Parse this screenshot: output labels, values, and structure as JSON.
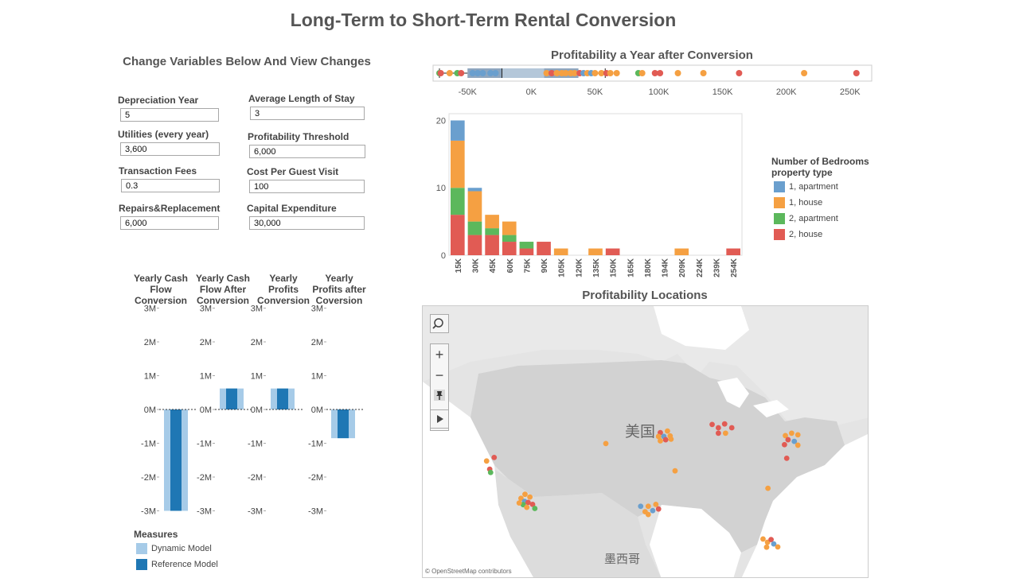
{
  "title": "Long-Term to Short-Term Rental Conversion",
  "controls": {
    "title": "Change Variables Below And View Changes",
    "params": [
      {
        "label": "Depreciation Year",
        "value": "5"
      },
      {
        "label": "Average Length of Stay",
        "value": "3"
      },
      {
        "label": "Utilities (every year)",
        "value": "3,600"
      },
      {
        "label": "Profitability Threshold",
        "value": "6,000"
      },
      {
        "label": "Transaction Fees",
        "value": "0.3"
      },
      {
        "label": "Cost Per Guest Visit",
        "value": "100"
      },
      {
        "label": "Repairs&Replacement",
        "value": "6,000"
      },
      {
        "label": "Capital Expenditure",
        "value": "30,000"
      }
    ]
  },
  "colors": {
    "apartment1": "#6a9fce",
    "house1": "#f5a042",
    "apartment2": "#5cb85c",
    "house2": "#e15b54",
    "dynamic": "#a6cbe8",
    "reference": "#1f77b4",
    "box": "#8ea6bf",
    "box_light": "#b4c7d9"
  },
  "measures_legend": {
    "title": "Measures",
    "items": [
      {
        "label": "Dynamic Model",
        "color": "#a6cbe8"
      },
      {
        "label": "Reference Model",
        "color": "#1f77b4"
      }
    ]
  },
  "bedrooms_legend": {
    "title_line1": "Number of Bedrooms",
    "title_line2": "property type",
    "items": [
      {
        "label": "1, apartment",
        "color": "#6a9fce"
      },
      {
        "label": "1, house",
        "color": "#f5a042"
      },
      {
        "label": "2, apartment",
        "color": "#5cb85c"
      },
      {
        "label": "2, house",
        "color": "#e15b54"
      }
    ]
  },
  "profitability_strip": {
    "title": "Profitability a Year after Conversion",
    "tick_labels": [
      "-50K",
      "0K",
      "50K",
      "100K",
      "150K",
      "200K",
      "250K"
    ],
    "tick_values": [
      -50000,
      0,
      50000,
      100000,
      150000,
      200000,
      250000
    ],
    "xlim": [
      -77000,
      267000
    ],
    "box": {
      "q1": -50000,
      "median": -23000,
      "q3": 10000,
      "upper_q": 37000,
      "whisker_low": -72000,
      "whisker_high": 58000
    },
    "points": [
      {
        "x": -72000,
        "g": "apartment2"
      },
      {
        "x": -71000,
        "g": "house2"
      },
      {
        "x": -64000,
        "g": "house1"
      },
      {
        "x": -58000,
        "g": "apartment2"
      },
      {
        "x": -55000,
        "g": "house2"
      },
      {
        "x": -46000,
        "g": "apartment1"
      },
      {
        "x": -42000,
        "g": "apartment1"
      },
      {
        "x": -38000,
        "g": "apartment1"
      },
      {
        "x": -32000,
        "g": "apartment1"
      },
      {
        "x": -28000,
        "g": "apartment1"
      },
      {
        "x": 12000,
        "g": "house1"
      },
      {
        "x": 16000,
        "g": "house2"
      },
      {
        "x": 20000,
        "g": "house1"
      },
      {
        "x": 24000,
        "g": "house1"
      },
      {
        "x": 27000,
        "g": "house1"
      },
      {
        "x": 31000,
        "g": "house1"
      },
      {
        "x": 34000,
        "g": "house1"
      },
      {
        "x": 38000,
        "g": "house2"
      },
      {
        "x": 41000,
        "g": "apartment1"
      },
      {
        "x": 44000,
        "g": "house1"
      },
      {
        "x": 47000,
        "g": "apartment1"
      },
      {
        "x": 50000,
        "g": "house1"
      },
      {
        "x": 55000,
        "g": "house1"
      },
      {
        "x": 59000,
        "g": "house2"
      },
      {
        "x": 62000,
        "g": "house1"
      },
      {
        "x": 67000,
        "g": "house1"
      },
      {
        "x": 84000,
        "g": "apartment2"
      },
      {
        "x": 87000,
        "g": "house1"
      },
      {
        "x": 97000,
        "g": "house2"
      },
      {
        "x": 101000,
        "g": "house2"
      },
      {
        "x": 115000,
        "g": "house1"
      },
      {
        "x": 135000,
        "g": "house1"
      },
      {
        "x": 163000,
        "g": "house2"
      },
      {
        "x": 214000,
        "g": "house1"
      },
      {
        "x": 255000,
        "g": "house2"
      }
    ]
  },
  "histogram": {
    "categories": [
      "15K",
      "30K",
      "45K",
      "60K",
      "75K",
      "90K",
      "105K",
      "120K",
      "135K",
      "150K",
      "165K",
      "180K",
      "194K",
      "209K",
      "224K",
      "239K",
      "254K"
    ],
    "y_ticks": [
      0,
      10,
      20
    ],
    "ylim": [
      0,
      21
    ],
    "stacks": [
      {
        "house2": 6,
        "apartment2": 4,
        "house1": 7,
        "apartment1": 3
      },
      {
        "house2": 3,
        "apartment2": 2,
        "house1": 4.5,
        "apartment1": 0.5
      },
      {
        "house2": 3,
        "apartment2": 1,
        "house1": 2
      },
      {
        "house2": 2,
        "apartment2": 1,
        "house1": 2
      },
      {
        "house2": 1,
        "apartment2": 1
      },
      {
        "house2": 2
      },
      {
        "house1": 1
      },
      {},
      {
        "house1": 1
      },
      {
        "house2": 1
      },
      {},
      {},
      {},
      {
        "house1": 1
      },
      {},
      {},
      {
        "house2": 1
      }
    ]
  },
  "cashflow": {
    "tick_labels": [
      "3M",
      "2M",
      "1M",
      "0M",
      "-1M",
      "-2M",
      "-3M"
    ],
    "tick_values": [
      3000000,
      2000000,
      1000000,
      0,
      -1000000,
      -2000000,
      -3000000
    ],
    "columns": [
      {
        "title_lines": [
          "Yearly Cash",
          "Flow",
          "Conversion"
        ],
        "dynamic": -3000000,
        "reference": -3000000
      },
      {
        "title_lines": [
          "Yearly Cash",
          "Flow After",
          "Conversion"
        ],
        "dynamic": 620000,
        "reference": 620000
      },
      {
        "title_lines": [
          "Yearly",
          "Profits",
          "Conversion"
        ],
        "dynamic": 620000,
        "reference": 620000
      },
      {
        "title_lines": [
          "Yearly",
          "Profits after",
          "Coversion"
        ],
        "dynamic": -850000,
        "reference": -850000
      }
    ]
  },
  "map": {
    "title": "Profitability Locations",
    "country_label": "美国",
    "mexico_label": "墨西哥",
    "attribution": "© OpenStreetMap contributors",
    "controls": [
      {
        "name": "map-search-button",
        "icon": "search-icon"
      },
      {
        "name": "map-zoom-in-button",
        "label": "+",
        "icon": "plus-icon"
      },
      {
        "name": "map-zoom-out-button",
        "label": "−",
        "icon": "minus-icon"
      },
      {
        "name": "map-pin-button",
        "icon": "pin-icon"
      },
      {
        "name": "map-play-button",
        "icon": "play-icon"
      }
    ],
    "points": [
      {
        "x": 0.16,
        "y": 0.555,
        "g": "house2"
      },
      {
        "x": 0.143,
        "y": 0.568,
        "g": "house1"
      },
      {
        "x": 0.15,
        "y": 0.598,
        "g": "house2"
      },
      {
        "x": 0.152,
        "y": 0.61,
        "g": "apartment2"
      },
      {
        "x": 0.22,
        "y": 0.705,
        "g": "house1"
      },
      {
        "x": 0.228,
        "y": 0.716,
        "g": "apartment1"
      },
      {
        "x": 0.24,
        "y": 0.7,
        "g": "house1"
      },
      {
        "x": 0.225,
        "y": 0.728,
        "g": "apartment2"
      },
      {
        "x": 0.236,
        "y": 0.72,
        "g": "house2"
      },
      {
        "x": 0.233,
        "y": 0.738,
        "g": "house1"
      },
      {
        "x": 0.246,
        "y": 0.727,
        "g": "house2"
      },
      {
        "x": 0.251,
        "y": 0.742,
        "g": "apartment2"
      },
      {
        "x": 0.216,
        "y": 0.722,
        "g": "house1"
      },
      {
        "x": 0.229,
        "y": 0.69,
        "g": "house1"
      },
      {
        "x": 0.41,
        "y": 0.504,
        "g": "house1"
      },
      {
        "x": 0.532,
        "y": 0.464,
        "g": "house2"
      },
      {
        "x": 0.548,
        "y": 0.458,
        "g": "house1"
      },
      {
        "x": 0.528,
        "y": 0.478,
        "g": "house1"
      },
      {
        "x": 0.54,
        "y": 0.478,
        "g": "apartment1"
      },
      {
        "x": 0.554,
        "y": 0.476,
        "g": "house1"
      },
      {
        "x": 0.544,
        "y": 0.49,
        "g": "house2"
      },
      {
        "x": 0.532,
        "y": 0.494,
        "g": "house1"
      },
      {
        "x": 0.556,
        "y": 0.488,
        "g": "house1"
      },
      {
        "x": 0.565,
        "y": 0.604,
        "g": "house1"
      },
      {
        "x": 0.488,
        "y": 0.734,
        "g": "apartment1"
      },
      {
        "x": 0.505,
        "y": 0.734,
        "g": "house1"
      },
      {
        "x": 0.522,
        "y": 0.727,
        "g": "house1"
      },
      {
        "x": 0.498,
        "y": 0.754,
        "g": "house1"
      },
      {
        "x": 0.515,
        "y": 0.75,
        "g": "apartment1"
      },
      {
        "x": 0.528,
        "y": 0.744,
        "g": "house2"
      },
      {
        "x": 0.505,
        "y": 0.764,
        "g": "house1"
      },
      {
        "x": 0.648,
        "y": 0.434,
        "g": "house2"
      },
      {
        "x": 0.662,
        "y": 0.446,
        "g": "house2"
      },
      {
        "x": 0.676,
        "y": 0.432,
        "g": "house2"
      },
      {
        "x": 0.692,
        "y": 0.446,
        "g": "house2"
      },
      {
        "x": 0.662,
        "y": 0.466,
        "g": "house2"
      },
      {
        "x": 0.678,
        "y": 0.466,
        "g": "house1"
      },
      {
        "x": 0.812,
        "y": 0.475,
        "g": "house1"
      },
      {
        "x": 0.826,
        "y": 0.466,
        "g": "house1"
      },
      {
        "x": 0.84,
        "y": 0.472,
        "g": "house1"
      },
      {
        "x": 0.818,
        "y": 0.49,
        "g": "house2"
      },
      {
        "x": 0.832,
        "y": 0.496,
        "g": "apartment1"
      },
      {
        "x": 0.84,
        "y": 0.51,
        "g": "house1"
      },
      {
        "x": 0.81,
        "y": 0.508,
        "g": "house2"
      },
      {
        "x": 0.815,
        "y": 0.558,
        "g": "house2"
      },
      {
        "x": 0.773,
        "y": 0.668,
        "g": "house1"
      },
      {
        "x": 0.762,
        "y": 0.854,
        "g": "house1"
      },
      {
        "x": 0.772,
        "y": 0.866,
        "g": "house1"
      },
      {
        "x": 0.78,
        "y": 0.856,
        "g": "house2"
      },
      {
        "x": 0.786,
        "y": 0.872,
        "g": "apartment1"
      },
      {
        "x": 0.77,
        "y": 0.884,
        "g": "house1"
      },
      {
        "x": 0.795,
        "y": 0.883,
        "g": "house1"
      }
    ]
  }
}
